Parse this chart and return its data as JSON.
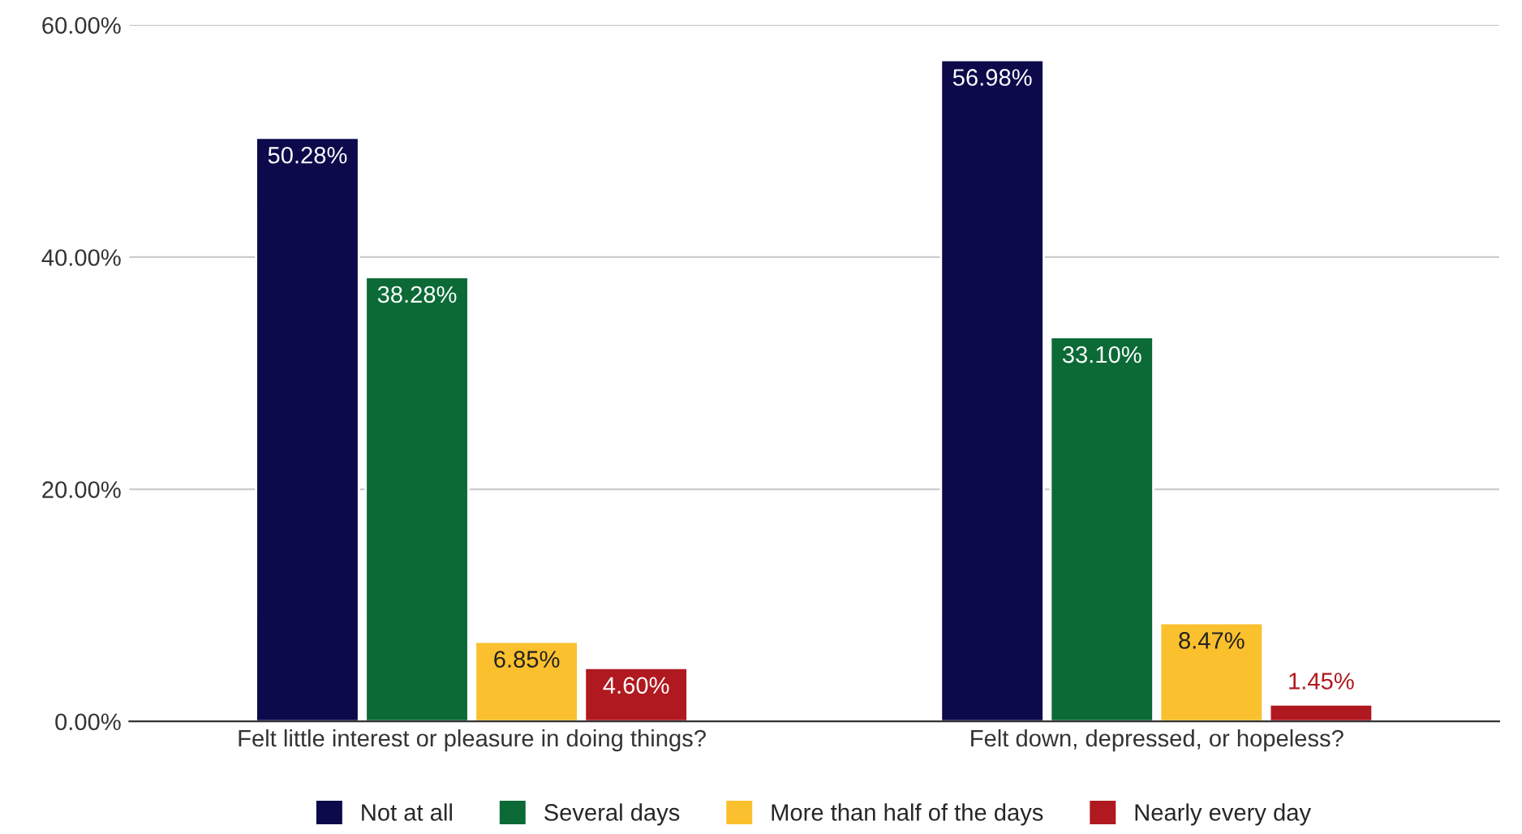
{
  "chart_data": {
    "type": "bar",
    "categories": [
      "Felt little interest or pleasure in doing things?",
      "Felt down, depressed, or hopeless?"
    ],
    "series": [
      {
        "name": "Not at all",
        "color": "#0c0a4b",
        "values": [
          50.28,
          56.98
        ],
        "value_labels": [
          "50.28%",
          "56.98%"
        ]
      },
      {
        "name": "Several days",
        "color": "#0b6a36",
        "values": [
          38.28,
          33.1
        ],
        "value_labels": [
          "38.28%",
          "33.10%"
        ]
      },
      {
        "name": "More than half of the days",
        "color": "#fbc02d",
        "values": [
          6.85,
          8.47
        ],
        "value_labels": [
          "6.85%",
          "8.47%"
        ]
      },
      {
        "name": "Nearly every day",
        "color": "#b0191f",
        "values": [
          4.6,
          1.45
        ],
        "value_labels": [
          "4.60%",
          "1.45%"
        ]
      }
    ],
    "ylim": [
      0,
      60
    ],
    "yticks": [
      {
        "value": 0,
        "label": "0.00%"
      },
      {
        "value": 20,
        "label": "20.00%"
      },
      {
        "value": 40,
        "label": "40.00%"
      },
      {
        "value": 60,
        "label": "60.00%"
      }
    ],
    "grid": "y",
    "legend": "bottom"
  }
}
